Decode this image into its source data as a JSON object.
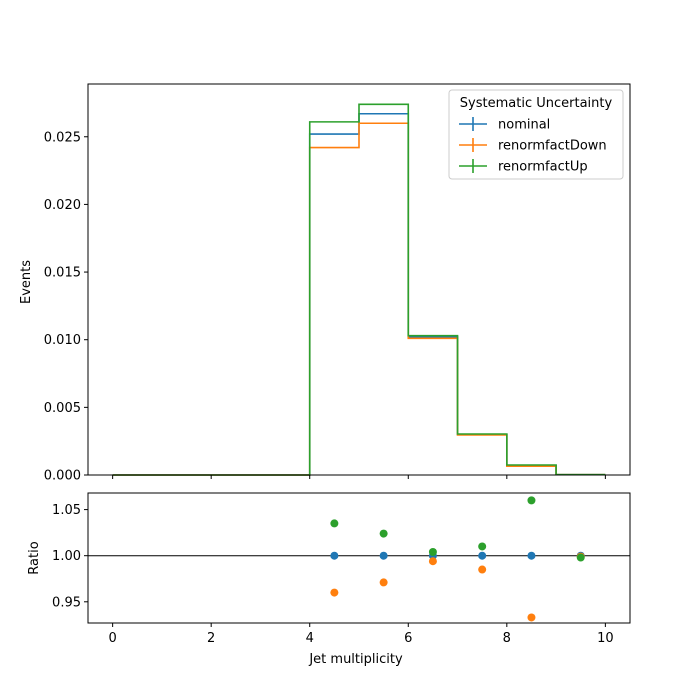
{
  "chart_data": {
    "type": "step",
    "bin_edges": [
      0,
      1,
      2,
      3,
      4,
      5,
      6,
      7,
      8,
      9,
      10
    ],
    "series": [
      {
        "name": "nominal",
        "color": "#1f77b4",
        "values": [
          0,
          0,
          0,
          0,
          0.0252,
          0.0267,
          0.0102,
          0.003,
          0.0007,
          2e-05
        ]
      },
      {
        "name": "renormfactDown",
        "color": "#ff7f0e",
        "values": [
          0,
          0,
          0,
          0,
          0.0242,
          0.026,
          0.0101,
          0.00296,
          0.00065,
          2e-05
        ]
      },
      {
        "name": "renormfactUp",
        "color": "#2ca02c",
        "values": [
          0,
          0,
          0,
          0,
          0.0261,
          0.0274,
          0.0103,
          0.00303,
          0.00074,
          2e-05
        ]
      }
    ],
    "legend_title": "Systematic Uncertainty",
    "legend_position": "top-right",
    "main_axis": {
      "ylabel": "Events",
      "ylim": [
        0,
        0.0289
      ],
      "yticks": [
        0.0,
        0.005,
        0.01,
        0.015,
        0.02,
        0.025
      ],
      "ytick_labels": [
        "0.000",
        "0.005",
        "0.010",
        "0.015",
        "0.020",
        "0.025"
      ]
    },
    "ratio_axis": {
      "ylabel": "Ratio",
      "ylim": [
        0.927,
        1.068
      ],
      "yticks": [
        0.95,
        1.0,
        1.05
      ],
      "ytick_labels": [
        "0.95",
        "1.00",
        "1.05"
      ],
      "reference_line": 1.0,
      "x": [
        4.5,
        5.5,
        6.5,
        7.5,
        8.5,
        9.5
      ],
      "series": [
        {
          "name": "nominal",
          "color": "#1f77b4",
          "values": [
            1.0,
            1.0,
            1.0,
            1.0,
            1.0,
            1.0
          ]
        },
        {
          "name": "renormfactDown",
          "color": "#ff7f0e",
          "values": [
            0.96,
            0.971,
            0.994,
            0.985,
            0.933,
            0.999
          ]
        },
        {
          "name": "renormfactUp",
          "color": "#2ca02c",
          "values": [
            1.035,
            1.024,
            1.004,
            1.01,
            1.06,
            0.998
          ]
        }
      ]
    },
    "xaxis": {
      "xlabel": "Jet multiplicity",
      "xlim": [
        -0.5,
        10.5
      ],
      "xticks": [
        0,
        2,
        4,
        6,
        8,
        10
      ],
      "xtick_labels": [
        "0",
        "2",
        "4",
        "6",
        "8",
        "10"
      ]
    }
  }
}
